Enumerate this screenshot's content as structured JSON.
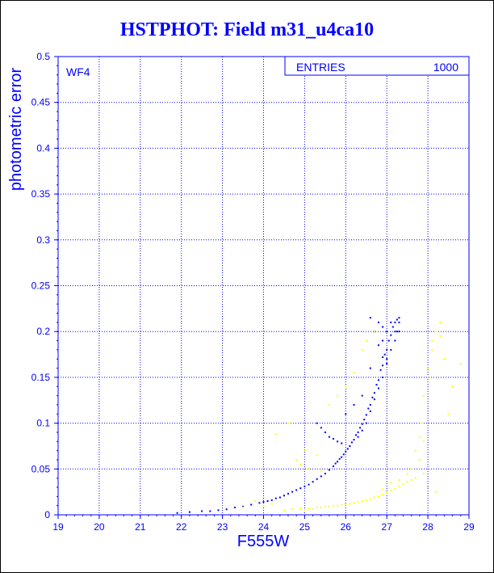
{
  "title": "HSTPHOT: Field m31_u4ca10",
  "colors": {
    "title": "#0000ff",
    "axes": "#0000ff",
    "grid": "#0000ff",
    "series_primary": "#0000ff",
    "series_secondary": "#ffff00"
  },
  "chart_data": {
    "type": "scatter",
    "title": "",
    "xlabel": "F555W",
    "ylabel": "photometric error",
    "xlim": [
      19,
      29
    ],
    "ylim": [
      0,
      0.5
    ],
    "x_ticks": [
      "19",
      "20",
      "21",
      "22",
      "23",
      "24",
      "25",
      "26",
      "27",
      "28",
      "29"
    ],
    "y_ticks": [
      "0",
      "0.05",
      "0.1",
      "0.15",
      "0.2",
      "0.25",
      "0.3",
      "0.35",
      "0.4",
      "0.45",
      "0.5"
    ],
    "grid": true,
    "panel_label": "WF4",
    "stats_box": {
      "label": "ENTRIES",
      "value": "1000"
    },
    "series": [
      {
        "color": "#0000ff",
        "points": [
          [
            21.9,
            0.002
          ],
          [
            22.2,
            0.003
          ],
          [
            22.5,
            0.004
          ],
          [
            22.7,
            0.004
          ],
          [
            22.9,
            0.005
          ],
          [
            23.1,
            0.006
          ],
          [
            23.3,
            0.008
          ],
          [
            23.5,
            0.009
          ],
          [
            23.7,
            0.011
          ],
          [
            23.9,
            0.013
          ],
          [
            24.0,
            0.014
          ],
          [
            24.1,
            0.015
          ],
          [
            24.2,
            0.016
          ],
          [
            24.3,
            0.018
          ],
          [
            24.4,
            0.019
          ],
          [
            24.5,
            0.021
          ],
          [
            24.6,
            0.023
          ],
          [
            24.7,
            0.025
          ],
          [
            24.8,
            0.027
          ],
          [
            24.9,
            0.029
          ],
          [
            25.0,
            0.031
          ],
          [
            25.1,
            0.033
          ],
          [
            25.2,
            0.036
          ],
          [
            25.3,
            0.039
          ],
          [
            25.4,
            0.042
          ],
          [
            25.5,
            0.045
          ],
          [
            25.6,
            0.049
          ],
          [
            25.7,
            0.053
          ],
          [
            25.8,
            0.058
          ],
          [
            25.9,
            0.063
          ],
          [
            26.0,
            0.069
          ],
          [
            26.1,
            0.075
          ],
          [
            26.2,
            0.082
          ],
          [
            26.3,
            0.09
          ],
          [
            26.4,
            0.099
          ],
          [
            26.5,
            0.109
          ],
          [
            26.6,
            0.12
          ],
          [
            26.7,
            0.133
          ],
          [
            26.8,
            0.147
          ],
          [
            26.9,
            0.163
          ],
          [
            27.0,
            0.18
          ],
          [
            27.1,
            0.196
          ],
          [
            27.2,
            0.21
          ],
          [
            27.3,
            0.215
          ],
          [
            27.25,
            0.213
          ],
          [
            27.15,
            0.205
          ],
          [
            27.05,
            0.19
          ],
          [
            26.95,
            0.175
          ],
          [
            26.85,
            0.158
          ],
          [
            26.75,
            0.142
          ],
          [
            26.65,
            0.128
          ],
          [
            26.55,
            0.116
          ],
          [
            26.45,
            0.104
          ],
          [
            26.35,
            0.095
          ],
          [
            26.25,
            0.087
          ],
          [
            26.15,
            0.079
          ],
          [
            26.05,
            0.072
          ],
          [
            25.95,
            0.066
          ],
          [
            25.85,
            0.061
          ],
          [
            25.75,
            0.056
          ],
          [
            27.2,
            0.19
          ],
          [
            27.1,
            0.18
          ],
          [
            27.0,
            0.165
          ],
          [
            26.9,
            0.15
          ],
          [
            26.8,
            0.138
          ],
          [
            26.7,
            0.126
          ],
          [
            26.6,
            0.113
          ],
          [
            26.5,
            0.1
          ],
          [
            26.4,
            0.092
          ],
          [
            26.3,
            0.085
          ],
          [
            27.25,
            0.2
          ],
          [
            27.3,
            0.21
          ],
          [
            27.2,
            0.2
          ],
          [
            27.0,
            0.17
          ],
          [
            26.9,
            0.172
          ],
          [
            25.5,
            0.09
          ],
          [
            25.6,
            0.085
          ],
          [
            25.7,
            0.083
          ],
          [
            25.8,
            0.08
          ],
          [
            25.9,
            0.078
          ],
          [
            25.3,
            0.1
          ],
          [
            25.4,
            0.095
          ],
          [
            26.0,
            0.11
          ],
          [
            26.2,
            0.12
          ],
          [
            26.4,
            0.13
          ],
          [
            26.6,
            0.16
          ],
          [
            26.7,
            0.2
          ],
          [
            26.8,
            0.21
          ],
          [
            26.6,
            0.215
          ],
          [
            26.9,
            0.205
          ],
          [
            27.0,
            0.2
          ],
          [
            27.1,
            0.21
          ],
          [
            27.3,
            0.2
          ],
          [
            26.9,
            0.19
          ],
          [
            26.8,
            0.185
          ]
        ]
      },
      {
        "color": "#ffff00",
        "points": [
          [
            23.8,
            0.015
          ],
          [
            24.5,
            0.005
          ],
          [
            24.7,
            0.006
          ],
          [
            24.9,
            0.007
          ],
          [
            25.1,
            0.007
          ],
          [
            25.3,
            0.008
          ],
          [
            25.5,
            0.009
          ],
          [
            25.7,
            0.01
          ],
          [
            25.9,
            0.011
          ],
          [
            26.1,
            0.012
          ],
          [
            26.3,
            0.014
          ],
          [
            26.5,
            0.016
          ],
          [
            26.7,
            0.019
          ],
          [
            26.9,
            0.022
          ],
          [
            27.1,
            0.026
          ],
          [
            27.3,
            0.031
          ],
          [
            27.5,
            0.036
          ],
          [
            27.7,
            0.04
          ],
          [
            27.9,
            0.045
          ],
          [
            25.0,
            0.005
          ],
          [
            25.2,
            0.006
          ],
          [
            25.4,
            0.008
          ],
          [
            25.6,
            0.009
          ],
          [
            25.8,
            0.01
          ],
          [
            26.0,
            0.011
          ],
          [
            26.2,
            0.013
          ],
          [
            26.4,
            0.015
          ],
          [
            26.6,
            0.017
          ],
          [
            26.8,
            0.02
          ],
          [
            27.0,
            0.024
          ],
          [
            27.2,
            0.028
          ],
          [
            27.4,
            0.033
          ],
          [
            27.6,
            0.038
          ],
          [
            27.8,
            0.06
          ],
          [
            27.9,
            0.08
          ],
          [
            27.85,
            0.1
          ],
          [
            27.9,
            0.13
          ],
          [
            28.0,
            0.16
          ],
          [
            28.1,
            0.18
          ],
          [
            28.2,
            0.2
          ],
          [
            28.3,
            0.21
          ],
          [
            28.4,
            0.17
          ],
          [
            28.5,
            0.11
          ],
          [
            28.6,
            0.14
          ],
          [
            28.8,
            0.165
          ],
          [
            27.7,
            0.07
          ],
          [
            27.8,
            0.085
          ],
          [
            28.1,
            0.19
          ],
          [
            28.3,
            0.195
          ],
          [
            28.0,
            0.15
          ],
          [
            24.3,
            0.088
          ],
          [
            24.6,
            0.1
          ],
          [
            25.0,
            0.07
          ],
          [
            25.3,
            0.065
          ],
          [
            25.6,
            0.12
          ],
          [
            25.8,
            0.13
          ],
          [
            26.0,
            0.14
          ],
          [
            26.2,
            0.155
          ],
          [
            26.4,
            0.18
          ],
          [
            26.5,
            0.19
          ],
          [
            26.7,
            0.2
          ],
          [
            24.8,
            0.06
          ],
          [
            24.9,
            0.055
          ],
          [
            25.1,
            0.05
          ],
          [
            25.4,
            0.048
          ],
          [
            23.5,
            0.008
          ],
          [
            24.0,
            0.01
          ],
          [
            24.2,
            0.012
          ],
          [
            27.5,
            0.045
          ],
          [
            27.6,
            0.05
          ],
          [
            28.0,
            0.03
          ],
          [
            28.2,
            0.025
          ],
          [
            27.3,
            0.038
          ],
          [
            27.1,
            0.035
          ],
          [
            26.9,
            0.028
          ]
        ]
      }
    ]
  }
}
